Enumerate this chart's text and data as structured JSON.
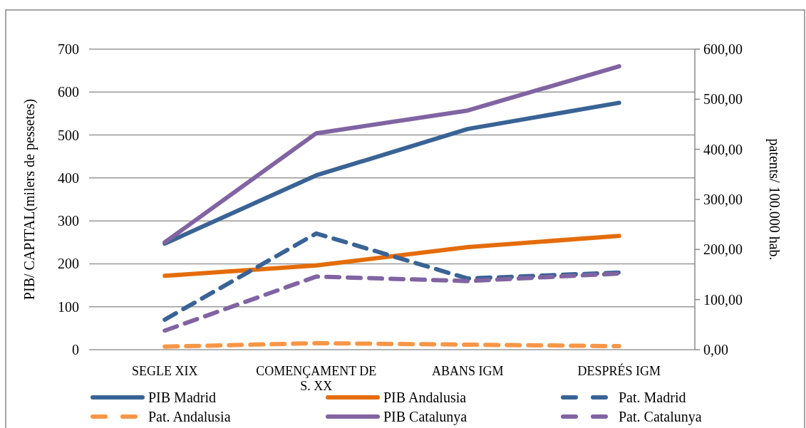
{
  "chart_data": {
    "type": "line",
    "ylabel": "PIB/ CAPITAL(milers  de pessetes)",
    "y2label": "patents/ 100.000 hab.",
    "categories": [
      "SEGLE XIX",
      "COMENÇAMENT DE S. XX",
      "ABANS IGM",
      "DESPRÉS IGM"
    ],
    "ylim": [
      0,
      700
    ],
    "yticks": [
      0,
      100,
      200,
      300,
      400,
      500,
      600,
      700
    ],
    "y2lim": [
      0,
      600
    ],
    "y2ticks": [
      {
        "value": 0,
        "label": "0,00"
      },
      {
        "value": 100,
        "label": "100,00"
      },
      {
        "value": 200,
        "label": "200,00"
      },
      {
        "value": 300,
        "label": "300,00"
      },
      {
        "value": 400,
        "label": "400,00"
      },
      {
        "value": 500,
        "label": "500,00"
      },
      {
        "value": 600,
        "label": "600,00"
      }
    ],
    "grid": "y",
    "legend": "bottom",
    "marker": "none",
    "series": [
      {
        "name": "PIB Madrid",
        "color": "#3a6395",
        "line_style": "solid",
        "values": [
          247,
          406,
          514,
          575
        ]
      },
      {
        "name": "PIB Andalusia",
        "color": "#e46c0a",
        "line_style": "solid",
        "values": [
          172,
          196,
          239,
          265
        ]
      },
      {
        "name": "Pat. Madrid",
        "color": "#3a6395",
        "line_style": "dashed",
        "axis": "y2",
        "values": [
          60,
          232,
          142,
          154
        ]
      },
      {
        "name": "Pat. Andalusia",
        "color": "#f79646",
        "line_style": "dashed",
        "axis": "y2",
        "values": [
          6,
          13,
          10,
          7
        ]
      },
      {
        "name": "PIB Catalunya",
        "color": "#8064a2",
        "line_style": "solid",
        "values": [
          250,
          504,
          557,
          660
        ]
      },
      {
        "name": "Pat. Catalunya",
        "color": "#8064a2",
        "line_style": "dashed",
        "axis": "y2",
        "values": [
          38,
          146,
          137,
          152
        ]
      }
    ]
  }
}
